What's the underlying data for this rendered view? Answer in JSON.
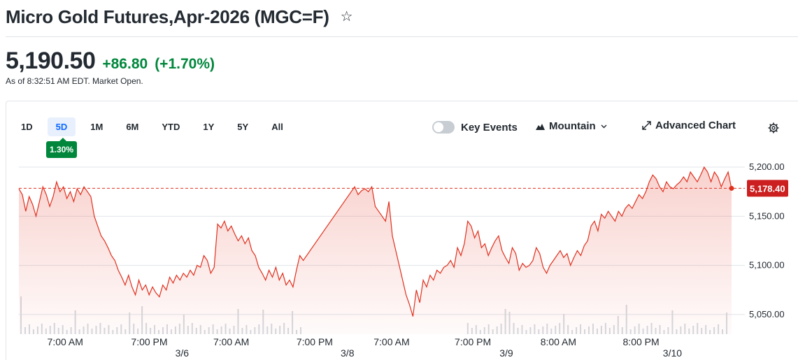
{
  "header": {
    "title": "Micro Gold Futures,Apr-2026 (MGC=F)",
    "star_icon": "star-icon"
  },
  "quote": {
    "price": "5,190.50",
    "change": "+86.80",
    "change_pct": "(+1.70%)",
    "as_of": "As of 8:32:51 AM EDT. Market Open.",
    "change_color": "#00873c"
  },
  "ranges": [
    "1D",
    "5D",
    "1M",
    "6M",
    "YTD",
    "1Y",
    "5Y",
    "All"
  ],
  "active_range": "5D",
  "range_change_badge": "1.30%",
  "toolbar": {
    "key_events": "Key Events",
    "key_events_on": false,
    "chart_type": "Mountain",
    "advanced": "Advanced Chart",
    "settings_icon": "gear-icon"
  },
  "chart_data": {
    "type": "area",
    "series_color": "#e0301e",
    "y_ticks": [
      "5,200.00",
      "5,150.00",
      "5,100.00",
      "5,050.00"
    ],
    "y_tick_values": [
      5200,
      5150,
      5100,
      5050
    ],
    "ylim": [
      5030,
      5210
    ],
    "x_tick_labels": [
      "7:00 AM",
      "7:00 PM",
      "7:00 AM",
      "7:00 PM",
      "7:00 AM",
      "7:00 PM",
      "8:00 AM",
      "8:00 PM"
    ],
    "date_labels": [
      "3/6",
      "3/8",
      "3/9",
      "3/10"
    ],
    "current_value": 5178.4,
    "current_label": "5,178.40",
    "grid": true,
    "prices": [
      5178,
      5172,
      5155,
      5170,
      5162,
      5150,
      5165,
      5180,
      5172,
      5160,
      5170,
      5185,
      5175,
      5180,
      5168,
      5175,
      5165,
      5178,
      5172,
      5180,
      5175,
      5170,
      5150,
      5140,
      5130,
      5125,
      5118,
      5110,
      5105,
      5095,
      5088,
      5080,
      5090,
      5078,
      5070,
      5085,
      5075,
      5080,
      5070,
      5078,
      5072,
      5068,
      5080,
      5075,
      5088,
      5082,
      5090,
      5085,
      5092,
      5088,
      5095,
      5090,
      5100,
      5098,
      5110,
      5105,
      5092,
      5098,
      5142,
      5138,
      5145,
      5135,
      5140,
      5132,
      5125,
      5130,
      5122,
      5128,
      5115,
      5110,
      5098,
      5092,
      5085,
      5095,
      5088,
      5098,
      5085,
      5092,
      5080,
      5085,
      5078,
      5095,
      5110,
      5105,
      5125,
      5150,
      5165,
      5158,
      5170,
      5160,
      5168,
      5172,
      5168,
      5180,
      5175,
      5185,
      5170,
      5175,
      5180,
      5172,
      5176,
      5178,
      5175,
      5180,
      5160,
      5155,
      5150,
      5145,
      5165,
      5130,
      5115,
      5100,
      5085,
      5070,
      5060,
      5048,
      5075,
      5062,
      5085,
      5078,
      5090,
      5085,
      5095,
      5092,
      5098,
      5100,
      5105,
      5098,
      5118,
      5110,
      5122,
      5145,
      5140,
      5128,
      5135,
      5118,
      5122,
      5110,
      5118,
      5125,
      5130,
      5115,
      5108,
      5102,
      5118,
      5112,
      5095,
      5102,
      5098,
      5100,
      5105,
      5118,
      5112,
      5098,
      5092,
      5100,
      5105,
      5110,
      5115,
      5108,
      5112,
      5100,
      5108,
      5115,
      5110,
      5120,
      5125,
      5140,
      5145,
      5135,
      5152,
      5148,
      5155,
      5150,
      5145,
      5155,
      5150,
      5158,
      5162,
      5158,
      5165,
      5172,
      5168,
      5175,
      5185,
      5192,
      5188,
      5180,
      5175,
      5185,
      5180,
      5178,
      5182,
      5185,
      5190,
      5185,
      5195,
      5190,
      5185,
      5192,
      5200,
      5195,
      5185,
      5195,
      5190,
      5180,
      5188,
      5195,
      5178
    ]
  }
}
